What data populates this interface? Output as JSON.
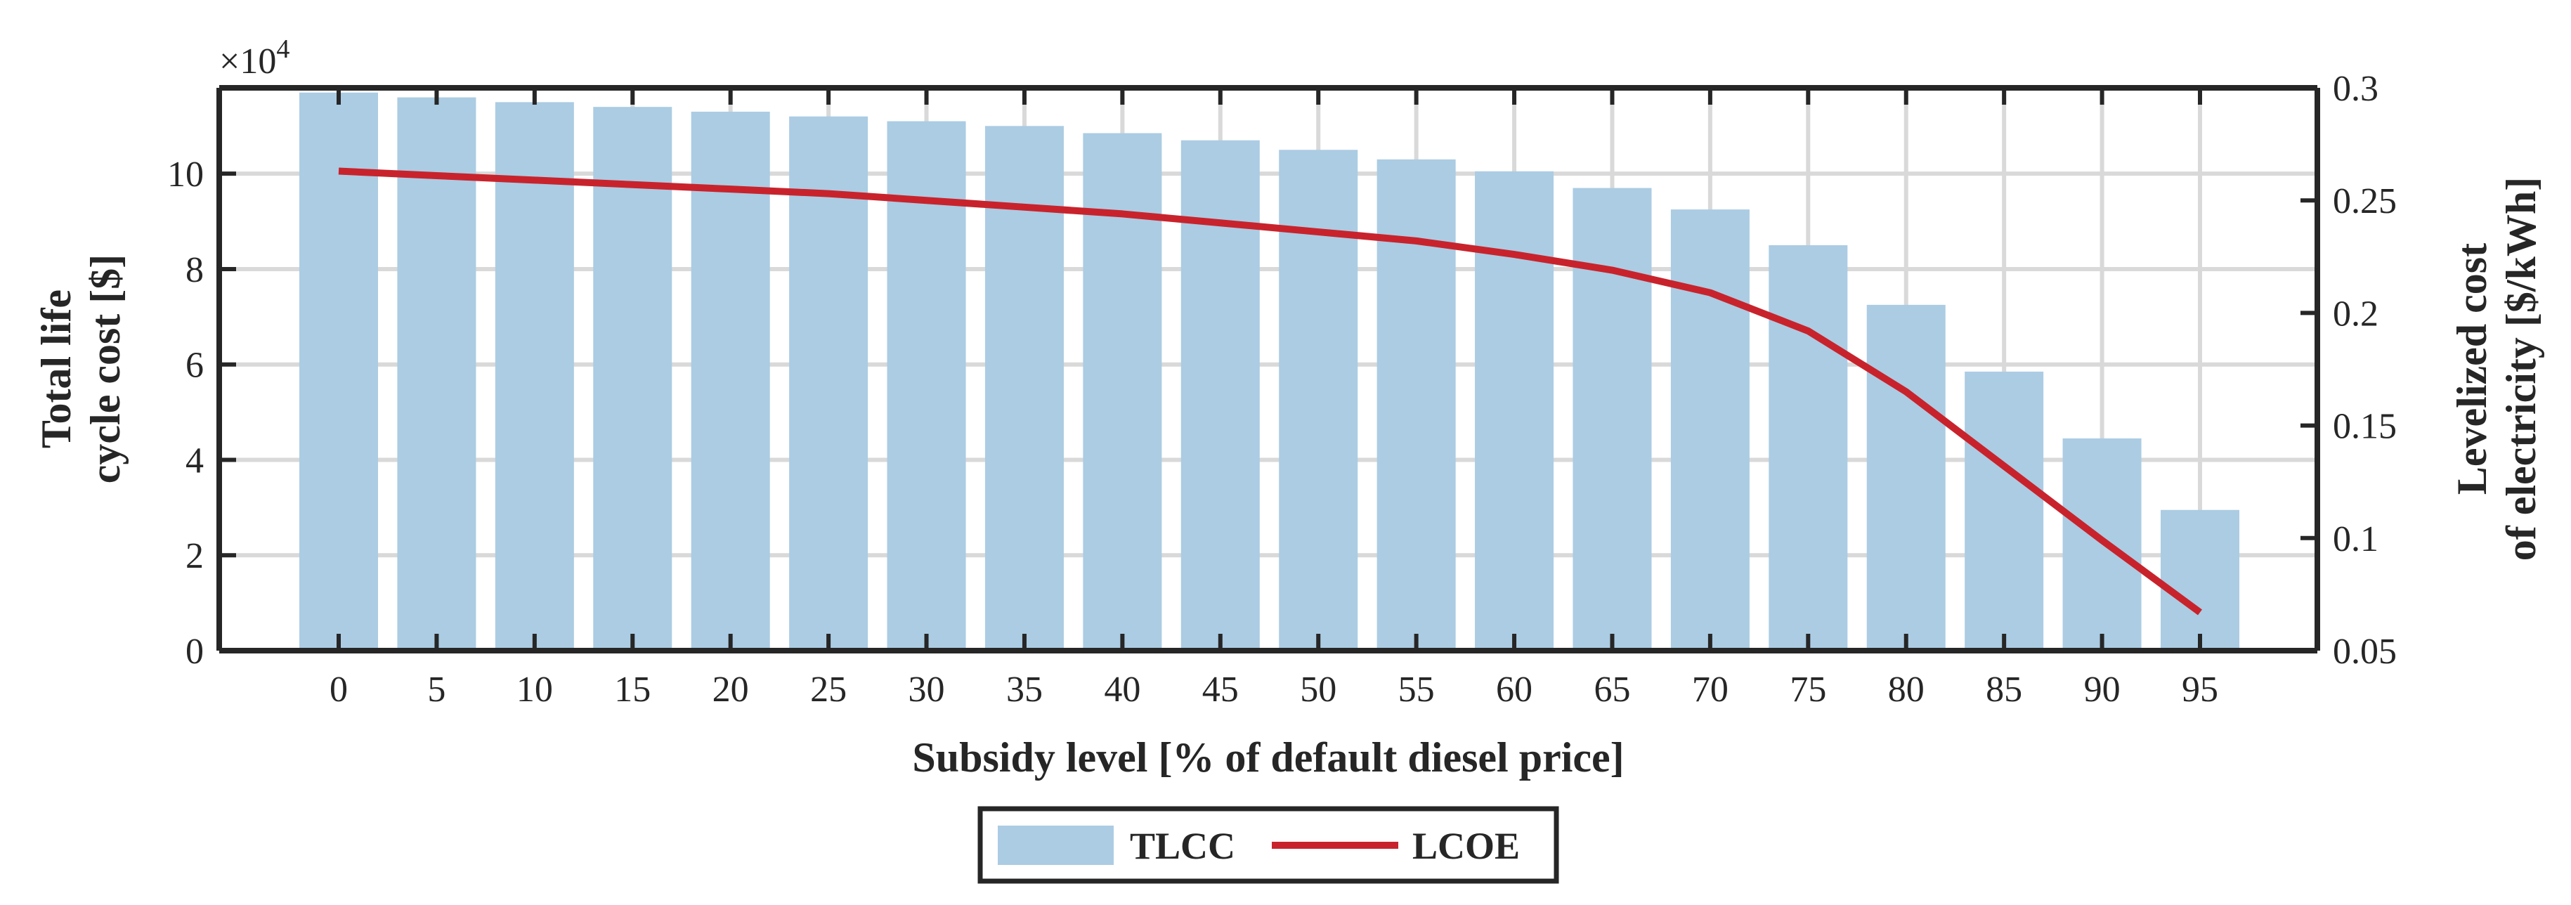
{
  "chart_data": {
    "type": "bar",
    "title": "",
    "xlabel": "Subsidy level [% of default diesel price]",
    "ylabel_left": [
      "Total life",
      "cycle cost [$]"
    ],
    "ylabel_right": [
      "Levelized cost",
      "of electricity [$/kWh]"
    ],
    "y_exponent_label": "×10",
    "y_exponent_power": "4",
    "categories": [
      "0",
      "5",
      "10",
      "15",
      "20",
      "25",
      "30",
      "35",
      "40",
      "45",
      "50",
      "55",
      "60",
      "65",
      "70",
      "75",
      "80",
      "85",
      "90",
      "95"
    ],
    "ylim_left": [
      0,
      11.8
    ],
    "yticks_left": [
      "0",
      "2",
      "4",
      "6",
      "8",
      "10"
    ],
    "ylim_right": [
      0.05,
      0.3
    ],
    "yticks_right": [
      "0.05",
      "0.1",
      "0.15",
      "0.2",
      "0.25",
      "0.3"
    ],
    "grid": true,
    "legend_placement": "bottom-center",
    "series": [
      {
        "name": "TLCC",
        "type": "bar",
        "axis": "left",
        "color": "#abcce3",
        "values": [
          11.7,
          11.6,
          11.5,
          11.4,
          11.3,
          11.2,
          11.1,
          11.0,
          10.85,
          10.7,
          10.5,
          10.3,
          10.05,
          9.7,
          9.25,
          8.5,
          7.25,
          5.85,
          4.45,
          2.95
        ]
      },
      {
        "name": "LCOE",
        "type": "line",
        "axis": "right",
        "color": "#c8232c",
        "values": [
          0.263,
          0.261,
          0.259,
          0.257,
          0.255,
          0.253,
          0.25,
          0.247,
          0.244,
          0.24,
          0.236,
          0.232,
          0.226,
          0.219,
          0.209,
          0.192,
          0.165,
          0.132,
          0.099,
          0.067
        ]
      }
    ]
  }
}
